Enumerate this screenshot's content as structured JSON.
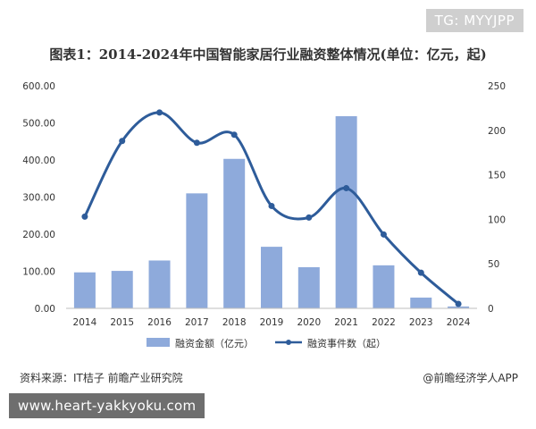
{
  "watermark_tag": "TG: MYYJPP",
  "footer_url": "www.heart-yakkyoku.com",
  "source_text": "资料来源：IT桔子 前瞻产业研究院",
  "credit_text": "@前瞻经济学人APP",
  "colors": {
    "bar": "#8eaadb",
    "line": "#2e5c9a"
  },
  "chart_data": {
    "type": "bar+line",
    "title": "图表1：2014-2024年中国智能家居行业融资整体情况(单位：亿元，起)",
    "categories": [
      "2014",
      "2015",
      "2016",
      "2017",
      "2018",
      "2019",
      "2020",
      "2021",
      "2022",
      "2023",
      "2024"
    ],
    "series": [
      {
        "name": "融资金额（亿元）",
        "type": "bar",
        "axis": "left",
        "values": [
          97,
          101,
          129,
          310,
          403,
          166,
          111,
          518,
          116,
          29,
          5
        ]
      },
      {
        "name": "融资事件数（起）",
        "type": "line",
        "axis": "right",
        "values": [
          103,
          188,
          220,
          186,
          195,
          115,
          102,
          135,
          83,
          40,
          5
        ]
      }
    ],
    "y_left": {
      "min": 0,
      "max": 600,
      "ticks": [
        "0.00",
        "100.00",
        "200.00",
        "300.00",
        "400.00",
        "500.00",
        "600.00"
      ]
    },
    "y_right": {
      "min": 0,
      "max": 250,
      "ticks": [
        "0",
        "50",
        "100",
        "150",
        "200",
        "250"
      ]
    },
    "grid": false,
    "legend_placement": "bottom-center"
  }
}
